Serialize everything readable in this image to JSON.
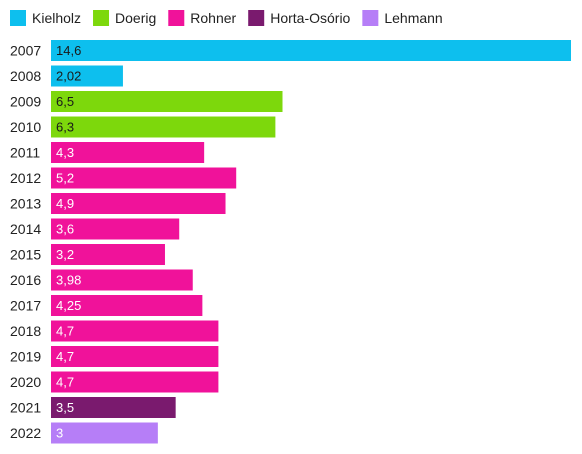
{
  "chart_data": {
    "type": "bar",
    "orientation": "horizontal",
    "title": "",
    "xlabel": "",
    "ylabel": "",
    "xlim": [
      0,
      14.6
    ],
    "grid": false,
    "legend_position": "top-left",
    "categories": [
      "2007",
      "2008",
      "2009",
      "2010",
      "2011",
      "2012",
      "2013",
      "2014",
      "2015",
      "2016",
      "2017",
      "2018",
      "2019",
      "2020",
      "2021",
      "2022"
    ],
    "values": [
      14.6,
      2.02,
      6.5,
      6.3,
      4.3,
      5.2,
      4.9,
      3.6,
      3.2,
      3.98,
      4.25,
      4.7,
      4.7,
      4.7,
      3.5,
      3
    ],
    "value_labels": [
      "14,6",
      "2,02",
      "6,5",
      "6,3",
      "4,3",
      "5,2",
      "4,9",
      "3,6",
      "3,2",
      "3,98",
      "4,25",
      "4,7",
      "4,7",
      "4,7",
      "3,5",
      "3"
    ],
    "bar_person": [
      "Kielholz",
      "Kielholz",
      "Doerig",
      "Doerig",
      "Rohner",
      "Rohner",
      "Rohner",
      "Rohner",
      "Rohner",
      "Rohner",
      "Rohner",
      "Rohner",
      "Rohner",
      "Rohner",
      "Horta-Osório",
      "Lehmann"
    ],
    "legend": [
      {
        "name": "Kielholz",
        "color": "#0dbfee"
      },
      {
        "name": "Doerig",
        "color": "#7dd80c"
      },
      {
        "name": "Rohner",
        "color": "#f0129a"
      },
      {
        "name": "Horta-Osório",
        "color": "#7a1a6e"
      },
      {
        "name": "Lehmann",
        "color": "#b67ef7"
      }
    ],
    "label_colors": {
      "Kielholz": "#1a1a1a",
      "Doerig": "#1a1a1a",
      "Rohner": "#ffffff",
      "Horta-Osório": "#ffffff",
      "Lehmann": "#ffffff"
    }
  }
}
